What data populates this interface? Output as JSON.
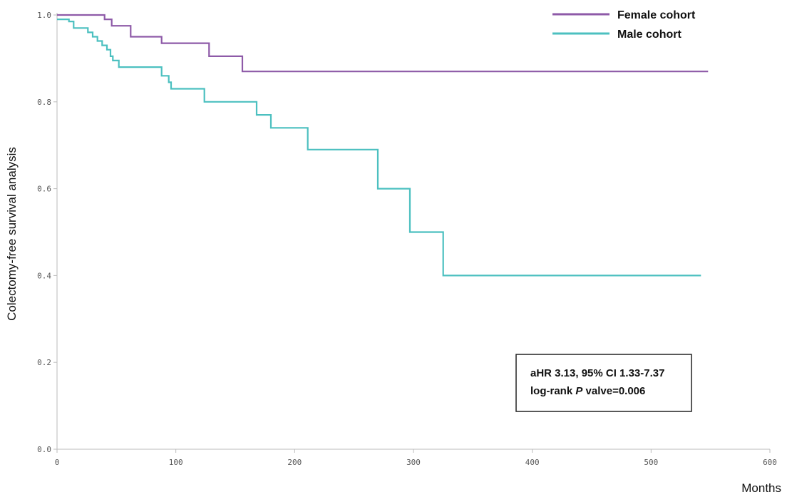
{
  "chart_data": {
    "type": "line",
    "title": "",
    "xlabel": "Months",
    "ylabel": "Colectomy-free survival analysis",
    "xlim": [
      0,
      600
    ],
    "ylim": [
      0.0,
      1.0
    ],
    "x_ticks": [
      0,
      100,
      200,
      300,
      400,
      500,
      600
    ],
    "y_ticks": [
      "0.0",
      "0.2",
      "0.4",
      "0.6",
      "0.8",
      "1.0"
    ],
    "grid": false,
    "legend_position": "top-right",
    "series": [
      {
        "name": "Female cohort",
        "color": "#8e5aa8",
        "step": "post",
        "points": [
          [
            0,
            1.0
          ],
          [
            40,
            0.99
          ],
          [
            46,
            0.975
          ],
          [
            62,
            0.95
          ],
          [
            88,
            0.935
          ],
          [
            128,
            0.905
          ],
          [
            156,
            0.87
          ],
          [
            548,
            0.87
          ]
        ]
      },
      {
        "name": "Male cohort",
        "color": "#4cc0c0",
        "step": "post",
        "points": [
          [
            0,
            0.99
          ],
          [
            10,
            0.985
          ],
          [
            14,
            0.97
          ],
          [
            26,
            0.96
          ],
          [
            30,
            0.95
          ],
          [
            34,
            0.94
          ],
          [
            38,
            0.93
          ],
          [
            42,
            0.92
          ],
          [
            45,
            0.905
          ],
          [
            47,
            0.895
          ],
          [
            52,
            0.88
          ],
          [
            70,
            0.88
          ],
          [
            88,
            0.86
          ],
          [
            94,
            0.845
          ],
          [
            96,
            0.83
          ],
          [
            124,
            0.8
          ],
          [
            168,
            0.77
          ],
          [
            180,
            0.74
          ],
          [
            211,
            0.69
          ],
          [
            270,
            0.6
          ],
          [
            297,
            0.5
          ],
          [
            325,
            0.4
          ],
          [
            542,
            0.4
          ]
        ]
      }
    ],
    "annotation": {
      "line1": "aHR 3.13, 95% CI 1.33-7.37",
      "line2_prefix": "log-rank ",
      "line2_italic": "P",
      "line2_suffix": " valve=0.006"
    }
  }
}
